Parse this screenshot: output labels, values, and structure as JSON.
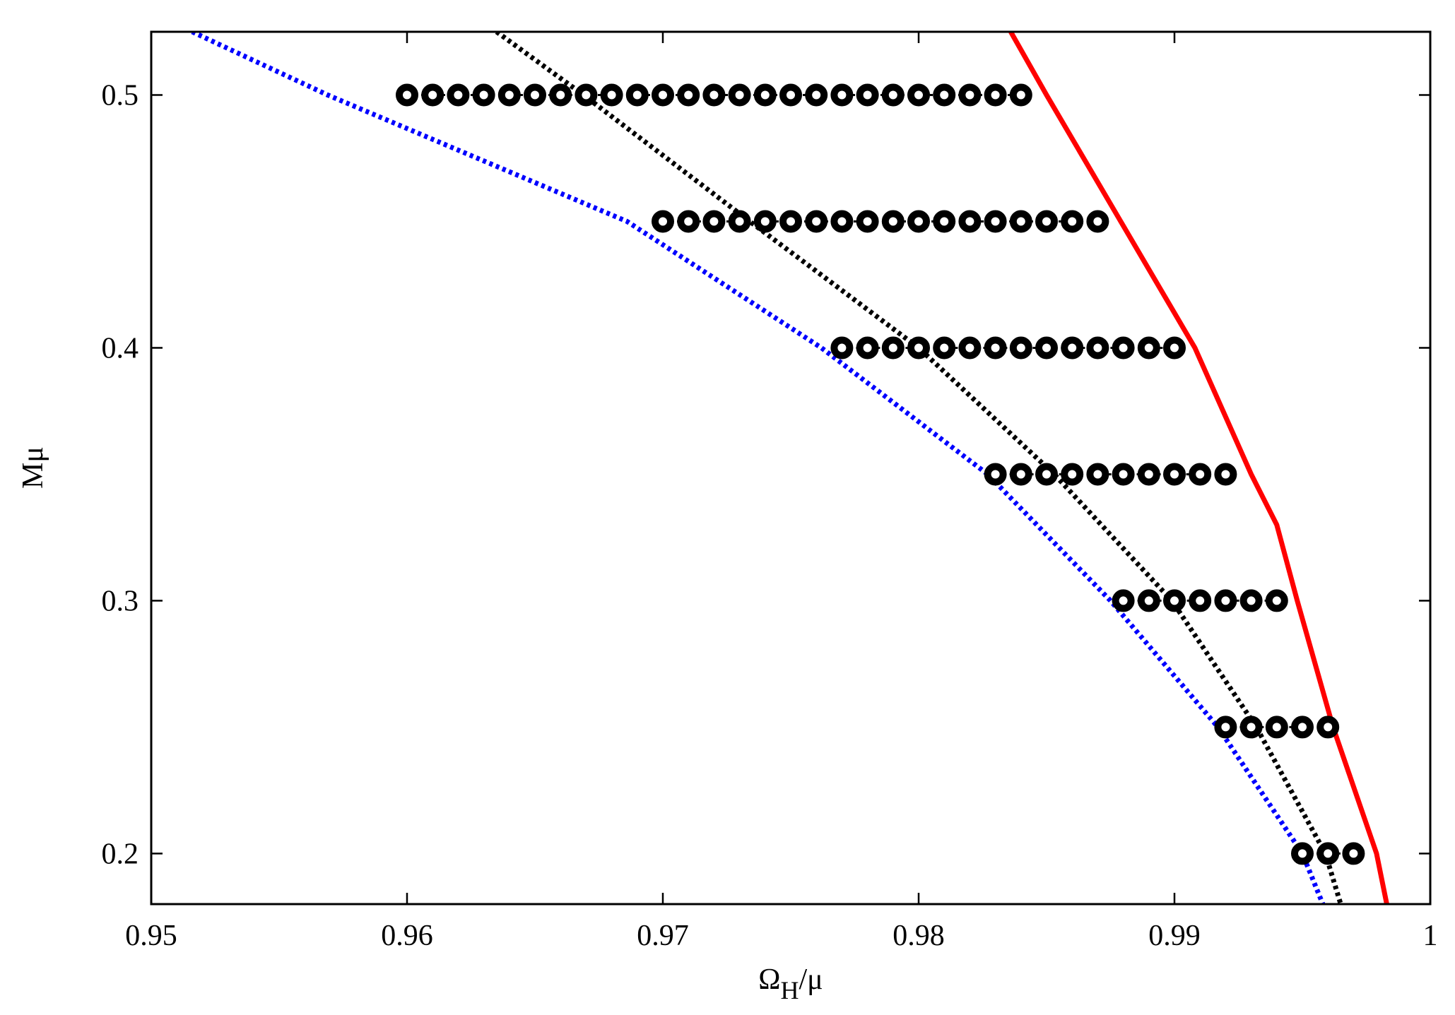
{
  "chart_data": {
    "type": "line",
    "x_label": {
      "base": "Ω",
      "sub": "H",
      "rest": "/μ"
    },
    "y_label": "Mμ",
    "xlim": [
      0.95,
      1
    ],
    "ylim": [
      0.18,
      0.525
    ],
    "xticks": [
      0.95,
      0.96,
      0.97,
      0.98,
      0.99,
      1
    ],
    "yticks": [
      0.2,
      0.3,
      0.4,
      0.5
    ],
    "series": [
      {
        "color": "#ff0000",
        "style": "solid",
        "x": [
          0.9836,
          0.985,
          0.9879,
          0.9908,
          0.993,
          0.994,
          0.9948,
          0.9962,
          0.9979,
          0.9983
        ],
        "values": [
          0.525,
          0.5,
          0.45,
          0.4,
          0.35,
          0.33,
          0.3,
          0.25,
          0.2,
          0.18
        ]
      },
      {
        "color": "#000000",
        "style": "dotted",
        "x": [
          0.9635,
          0.9669,
          0.9734,
          0.98,
          0.9853,
          0.9899,
          0.9932,
          0.9959,
          0.9965
        ],
        "values": [
          0.525,
          0.5,
          0.45,
          0.4,
          0.35,
          0.3,
          0.25,
          0.2,
          0.18
        ]
      },
      {
        "color": "#0000ff",
        "style": "dotted",
        "x": [
          0.9516,
          0.9569,
          0.9686,
          0.9762,
          0.9827,
          0.9875,
          0.9917,
          0.995,
          0.9958
        ],
        "values": [
          0.525,
          0.5,
          0.45,
          0.4,
          0.35,
          0.3,
          0.25,
          0.2,
          0.18
        ]
      },
      {
        "color": "#000000",
        "style": "markers",
        "x": [
          0.96,
          0.961,
          0.962,
          0.963,
          0.964,
          0.965,
          0.966,
          0.967,
          0.968,
          0.969,
          0.97,
          0.971,
          0.972,
          0.973,
          0.974,
          0.975,
          0.976,
          0.977,
          0.978,
          0.979,
          0.98,
          0.981,
          0.982,
          0.983,
          0.984
        ],
        "values": [
          0.5,
          0.5,
          0.5,
          0.5,
          0.5,
          0.5,
          0.5,
          0.5,
          0.5,
          0.5,
          0.5,
          0.5,
          0.5,
          0.5,
          0.5,
          0.5,
          0.5,
          0.5,
          0.5,
          0.5,
          0.5,
          0.5,
          0.5,
          0.5,
          0.5
        ]
      },
      {
        "color": "#000000",
        "style": "markers",
        "x": [
          0.97,
          0.971,
          0.972,
          0.973,
          0.974,
          0.975,
          0.976,
          0.977,
          0.978,
          0.979,
          0.98,
          0.981,
          0.982,
          0.983,
          0.984,
          0.985,
          0.986,
          0.987
        ],
        "values": [
          0.45,
          0.45,
          0.45,
          0.45,
          0.45,
          0.45,
          0.45,
          0.45,
          0.45,
          0.45,
          0.45,
          0.45,
          0.45,
          0.45,
          0.45,
          0.45,
          0.45,
          0.45
        ]
      },
      {
        "color": "#000000",
        "style": "markers",
        "x": [
          0.977,
          0.978,
          0.979,
          0.98,
          0.981,
          0.982,
          0.983,
          0.984,
          0.985,
          0.986,
          0.987,
          0.988,
          0.989,
          0.99
        ],
        "values": [
          0.4,
          0.4,
          0.4,
          0.4,
          0.4,
          0.4,
          0.4,
          0.4,
          0.4,
          0.4,
          0.4,
          0.4,
          0.4,
          0.4
        ]
      },
      {
        "color": "#000000",
        "style": "markers",
        "x": [
          0.983,
          0.984,
          0.985,
          0.986,
          0.987,
          0.988,
          0.989,
          0.99,
          0.991,
          0.992
        ],
        "values": [
          0.35,
          0.35,
          0.35,
          0.35,
          0.35,
          0.35,
          0.35,
          0.35,
          0.35,
          0.35
        ]
      },
      {
        "color": "#000000",
        "style": "markers",
        "x": [
          0.988,
          0.989,
          0.99,
          0.991,
          0.992,
          0.993,
          0.994
        ],
        "values": [
          0.3,
          0.3,
          0.3,
          0.3,
          0.3,
          0.3,
          0.3
        ]
      },
      {
        "color": "#000000",
        "style": "markers",
        "x": [
          0.992,
          0.993,
          0.994,
          0.995,
          0.996
        ],
        "values": [
          0.25,
          0.25,
          0.25,
          0.25,
          0.25
        ]
      },
      {
        "color": "#000000",
        "style": "markers",
        "x": [
          0.995,
          0.996,
          0.997
        ],
        "values": [
          0.2,
          0.2,
          0.2
        ]
      }
    ]
  }
}
